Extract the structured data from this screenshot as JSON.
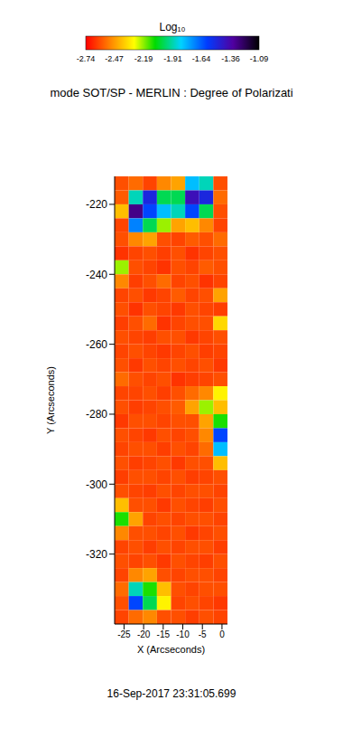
{
  "chart_data": {
    "type": "heatmap",
    "title": "mode SOT/SP - MERLIN : Degree of Polarizati",
    "subtitle": "16-Sep-2017 23:31:05.699",
    "x_label": "X (Arcseconds)",
    "y_label": "Y (Arcseconds)",
    "xlim": [
      -27.4,
      1.4
    ],
    "ylim": [
      -340,
      -212
    ],
    "xticks": [
      -25,
      -20,
      -15,
      -10,
      -5,
      0
    ],
    "yticks": [
      -220,
      -240,
      -260,
      -280,
      -300,
      -320
    ],
    "x_edges": [
      -27.4,
      -23.8,
      -20.2,
      -16.6,
      -13,
      -9.4,
      -5.8,
      -2.2,
      1.4
    ],
    "y_edges": [
      -212,
      -216,
      -220,
      -224,
      -228,
      -232,
      -236,
      -240,
      -244,
      -248,
      -252,
      -256,
      -260,
      -264,
      -268,
      -272,
      -276,
      -280,
      -284,
      -288,
      -292,
      -296,
      -300,
      -304,
      -308,
      -312,
      -316,
      -320,
      -324,
      -328,
      -332,
      -336,
      -340
    ],
    "values": [
      [
        -2.6,
        -2.55,
        -2.62,
        -2.5,
        -2.45,
        -1.8,
        -1.9,
        -2.6
      ],
      [
        -2.58,
        -1.9,
        -1.5,
        -2.0,
        -2.0,
        -1.4,
        -1.5,
        -2.55
      ],
      [
        -2.4,
        -1.3,
        -1.6,
        -1.8,
        -1.9,
        -1.6,
        -2.0,
        -2.6
      ],
      [
        -2.62,
        -1.7,
        -2.0,
        -2.2,
        -2.45,
        -2.4,
        -2.5,
        -2.62
      ],
      [
        -2.6,
        -2.5,
        -2.45,
        -2.6,
        -2.62,
        -2.58,
        -2.6,
        -2.55
      ],
      [
        -2.65,
        -2.62,
        -2.6,
        -2.63,
        -2.6,
        -2.65,
        -2.62,
        -2.6
      ],
      [
        -2.2,
        -2.6,
        -2.62,
        -2.65,
        -2.6,
        -2.62,
        -2.58,
        -2.6
      ],
      [
        -2.5,
        -2.63,
        -2.6,
        -2.55,
        -2.62,
        -2.6,
        -2.65,
        -2.62
      ],
      [
        -2.62,
        -2.6,
        -2.64,
        -2.62,
        -2.58,
        -2.62,
        -2.6,
        -2.45
      ],
      [
        -2.6,
        -2.65,
        -2.6,
        -2.62,
        -2.64,
        -2.6,
        -2.62,
        -2.63
      ],
      [
        -2.63,
        -2.6,
        -2.55,
        -2.65,
        -2.62,
        -2.6,
        -2.6,
        -2.35
      ],
      [
        -2.6,
        -2.62,
        -2.63,
        -2.6,
        -2.6,
        -2.64,
        -2.62,
        -2.6
      ],
      [
        -2.62,
        -2.6,
        -2.62,
        -2.64,
        -2.62,
        -2.6,
        -2.63,
        -2.62
      ],
      [
        -2.6,
        -2.64,
        -2.6,
        -2.62,
        -2.6,
        -2.62,
        -2.6,
        -2.64
      ],
      [
        -2.55,
        -2.6,
        -2.62,
        -2.6,
        -2.65,
        -2.63,
        -2.62,
        -2.6
      ],
      [
        -2.62,
        -2.62,
        -2.6,
        -2.63,
        -2.6,
        -2.55,
        -2.5,
        -2.3
      ],
      [
        -2.6,
        -2.63,
        -2.62,
        -2.6,
        -2.58,
        -2.45,
        -2.2,
        -2.4
      ],
      [
        -2.64,
        -2.6,
        -2.6,
        -2.62,
        -2.6,
        -2.6,
        -2.45,
        -2.1
      ],
      [
        -2.6,
        -2.62,
        -2.64,
        -2.6,
        -2.62,
        -2.6,
        -2.5,
        -1.6
      ],
      [
        -2.62,
        -2.6,
        -2.6,
        -2.63,
        -2.6,
        -2.62,
        -2.55,
        -1.8
      ],
      [
        -2.6,
        -2.63,
        -2.62,
        -2.6,
        -2.64,
        -2.6,
        -2.6,
        -2.4
      ],
      [
        -2.63,
        -2.6,
        -2.6,
        -2.62,
        -2.6,
        -2.63,
        -2.62,
        -2.6
      ],
      [
        -2.6,
        -2.62,
        -2.63,
        -2.6,
        -2.62,
        -2.6,
        -2.6,
        -2.62
      ],
      [
        -2.4,
        -2.6,
        -2.6,
        -2.64,
        -2.6,
        -2.62,
        -2.63,
        -2.6
      ],
      [
        -2.1,
        -2.45,
        -2.62,
        -2.6,
        -2.62,
        -2.6,
        -2.6,
        -2.62
      ],
      [
        -2.5,
        -2.6,
        -2.6,
        -2.62,
        -2.6,
        -2.64,
        -2.62,
        -2.6
      ],
      [
        -2.62,
        -2.6,
        -2.63,
        -2.6,
        -2.62,
        -2.6,
        -2.6,
        -2.63
      ],
      [
        -2.6,
        -2.62,
        -2.6,
        -2.64,
        -2.6,
        -2.62,
        -2.63,
        -2.6
      ],
      [
        -2.62,
        -2.5,
        -2.45,
        -2.6,
        -2.62,
        -2.6,
        -2.6,
        -2.62
      ],
      [
        -2.55,
        -1.9,
        -2.1,
        -2.4,
        -2.6,
        -2.62,
        -2.6,
        -2.6
      ],
      [
        -2.6,
        -1.6,
        -2.0,
        -2.3,
        -2.62,
        -2.6,
        -2.62,
        -2.64
      ],
      [
        -2.62,
        -2.55,
        -2.5,
        -2.6,
        -2.6,
        -2.63,
        -2.6,
        -2.62
      ]
    ],
    "colorbar": {
      "title": "Log₁₀",
      "range": [
        -2.74,
        -1.09
      ],
      "ticks": [
        -2.74,
        -2.47,
        -2.19,
        -1.91,
        -1.64,
        -1.36,
        -1.09
      ]
    }
  }
}
